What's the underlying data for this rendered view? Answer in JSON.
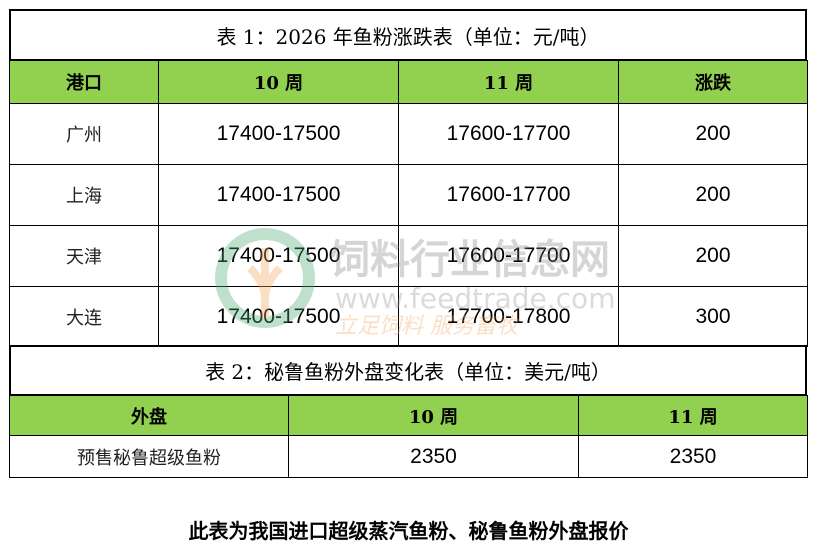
{
  "table1": {
    "title": "表 1：2026 年鱼粉涨跌表（单位：元/吨）",
    "headers": [
      "港口",
      "10 周",
      "11 周",
      "涨跌"
    ],
    "rows": [
      [
        "广州",
        "17400-17500",
        "17600-17700",
        "200"
      ],
      [
        "上海",
        "17400-17500",
        "17600-17700",
        "200"
      ],
      [
        "天津",
        "17400-17500",
        "17600-17700",
        "200"
      ],
      [
        "大连",
        "17400-17500",
        "17700-17800",
        "300"
      ]
    ]
  },
  "table2": {
    "title": "表 2：秘鲁鱼粉外盘变化表（单位：美元/吨）",
    "headers": [
      "外盘",
      "10 周",
      "11 周"
    ],
    "rows": [
      [
        "预售秘鲁超级鱼粉",
        "2350",
        "2350"
      ]
    ]
  },
  "footer": "此表为我国进口超级蒸汽鱼粉、秘鲁鱼粉外盘报价",
  "watermark": {
    "name": "饲料行业信息网",
    "url": "www.feedtrade.com.cn",
    "slogan": "立足饲料 服务畜牧"
  },
  "colors": {
    "header_bg": "#92D050"
  }
}
